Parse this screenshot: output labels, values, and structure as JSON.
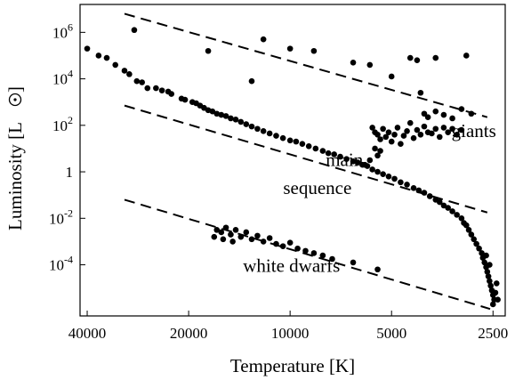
{
  "chart_data": {
    "type": "scatter",
    "title": "",
    "xlabel": "Temperature [K]",
    "ylabel_text": "Luminosity [L",
    "ylabel_close": "]",
    "x_scale": "log-reversed",
    "y_scale": "log",
    "xlim": [
      42000,
      2300
    ],
    "ylim_log10": [
      -6.2,
      7.2
    ],
    "grid": false,
    "legend": "none",
    "x_ticks": [
      {
        "value": 40000,
        "label": "40000"
      },
      {
        "value": 20000,
        "label": "20000"
      },
      {
        "value": 10000,
        "label": "10000"
      },
      {
        "value": 5000,
        "label": "5000"
      },
      {
        "value": 2500,
        "label": "2500"
      }
    ],
    "y_ticks": [
      {
        "log": 6,
        "base": "10",
        "exp": "6"
      },
      {
        "log": 4,
        "base": "10",
        "exp": "4"
      },
      {
        "log": 2,
        "base": "10",
        "exp": "2"
      },
      {
        "log": 0,
        "base": "1",
        "exp": ""
      },
      {
        "log": -2,
        "base": "10",
        "exp": "-2"
      },
      {
        "log": -4,
        "base": "10",
        "exp": "-4"
      }
    ],
    "annotations": [
      {
        "text": "giants",
        "x": 2850,
        "log_y": 1.5
      },
      {
        "text": "main",
        "x": 6900,
        "log_y": 0.25
      },
      {
        "text": "sequence",
        "x": 8300,
        "log_y": -0.95
      },
      {
        "text": "white dwarfs",
        "x": 9900,
        "log_y": -4.3
      }
    ],
    "reference_lines": [
      {
        "x": [
          31000,
          2600
        ],
        "log_y": [
          6.8,
          2.35
        ]
      },
      {
        "x": [
          31000,
          2600
        ],
        "log_y": [
          2.85,
          -1.75
        ]
      },
      {
        "x": [
          31000,
          2550
        ],
        "log_y": [
          -1.2,
          -5.9
        ]
      }
    ],
    "series": [
      {
        "role": "main-sequence",
        "points": [
          [
            40000,
            5.3
          ],
          [
            37000,
            5.0
          ],
          [
            35000,
            4.9
          ],
          [
            33000,
            4.6
          ],
          [
            31000,
            4.35
          ],
          [
            30000,
            4.2
          ],
          [
            28500,
            3.9
          ],
          [
            27500,
            3.85
          ],
          [
            26500,
            3.6
          ],
          [
            25000,
            3.6
          ],
          [
            24000,
            3.5
          ],
          [
            23000,
            3.45
          ],
          [
            22500,
            3.35
          ],
          [
            21000,
            3.15
          ],
          [
            20500,
            3.1
          ],
          [
            19500,
            3.0
          ],
          [
            19000,
            2.95
          ],
          [
            18500,
            2.85
          ],
          [
            18000,
            2.75
          ],
          [
            17500,
            2.65
          ],
          [
            17000,
            2.6
          ],
          [
            16500,
            2.5
          ],
          [
            16000,
            2.45
          ],
          [
            15500,
            2.4
          ],
          [
            15000,
            2.3
          ],
          [
            14500,
            2.25
          ],
          [
            14000,
            2.15
          ],
          [
            13500,
            2.05
          ],
          [
            13000,
            1.95
          ],
          [
            12500,
            1.85
          ],
          [
            12000,
            1.75
          ],
          [
            11500,
            1.65
          ],
          [
            11000,
            1.55
          ],
          [
            10500,
            1.45
          ],
          [
            10000,
            1.35
          ],
          [
            9600,
            1.3
          ],
          [
            9200,
            1.2
          ],
          [
            8800,
            1.1
          ],
          [
            8400,
            1.0
          ],
          [
            8000,
            0.9
          ],
          [
            7700,
            0.8
          ],
          [
            7400,
            0.75
          ],
          [
            7100,
            0.65
          ],
          [
            6800,
            0.55
          ],
          [
            6500,
            0.45
          ],
          [
            6300,
            0.4
          ],
          [
            6100,
            0.3
          ],
          [
            5900,
            0.25
          ],
          [
            5700,
            0.1
          ],
          [
            5500,
            0.0
          ],
          [
            5300,
            -0.1
          ],
          [
            5100,
            -0.2
          ],
          [
            4900,
            -0.3
          ],
          [
            4700,
            -0.45
          ],
          [
            4500,
            -0.55
          ],
          [
            4300,
            -0.7
          ],
          [
            4150,
            -0.8
          ],
          [
            4000,
            -0.9
          ],
          [
            3850,
            -1.05
          ],
          [
            3700,
            -1.2
          ],
          [
            3600,
            -1.3
          ],
          [
            3500,
            -1.45
          ],
          [
            3400,
            -1.55
          ],
          [
            3300,
            -1.7
          ],
          [
            3200,
            -1.85
          ],
          [
            3100,
            -2.0
          ],
          [
            3050,
            -2.2
          ],
          [
            3000,
            -2.3
          ],
          [
            2950,
            -2.5
          ],
          [
            2900,
            -2.7
          ],
          [
            2850,
            -2.9
          ],
          [
            2800,
            -3.1
          ],
          [
            2750,
            -3.3
          ],
          [
            2700,
            -3.5
          ],
          [
            2680,
            -3.7
          ],
          [
            2650,
            -3.9
          ],
          [
            2620,
            -4.1
          ],
          [
            2600,
            -4.3
          ],
          [
            2580,
            -4.5
          ],
          [
            2560,
            -4.7
          ],
          [
            2540,
            -4.9
          ],
          [
            2520,
            -5.1
          ],
          [
            2500,
            -5.3
          ],
          [
            2480,
            -5.5
          ],
          [
            2500,
            -5.7
          ],
          [
            2460,
            -5.2
          ],
          [
            2440,
            -4.8
          ],
          [
            2420,
            -5.5
          ],
          [
            2560,
            -4.0
          ],
          [
            2620,
            -3.6
          ]
        ]
      },
      {
        "role": "giants",
        "points": [
          [
            5700,
            1.9
          ],
          [
            5600,
            1.7
          ],
          [
            5500,
            1.6
          ],
          [
            5400,
            1.4
          ],
          [
            5300,
            1.85
          ],
          [
            5200,
            1.5
          ],
          [
            5100,
            1.7
          ],
          [
            5000,
            1.3
          ],
          [
            4900,
            1.6
          ],
          [
            4800,
            1.9
          ],
          [
            4700,
            1.2
          ],
          [
            4600,
            1.55
          ],
          [
            4500,
            1.75
          ],
          [
            4400,
            2.1
          ],
          [
            4300,
            1.45
          ],
          [
            4200,
            1.8
          ],
          [
            4100,
            1.6
          ],
          [
            4000,
            1.95
          ],
          [
            3900,
            1.7
          ],
          [
            3800,
            1.65
          ],
          [
            3700,
            1.85
          ],
          [
            3600,
            1.5
          ],
          [
            3500,
            1.9
          ],
          [
            3400,
            1.7
          ],
          [
            3300,
            1.85
          ],
          [
            3200,
            1.6
          ],
          [
            3100,
            1.8
          ],
          [
            5600,
            1.0
          ],
          [
            5500,
            0.7
          ],
          [
            5800,
            0.5
          ],
          [
            6000,
            0.3
          ],
          [
            5400,
            0.9
          ],
          [
            4000,
            2.5
          ],
          [
            3900,
            2.35
          ],
          [
            3700,
            2.6
          ],
          [
            3500,
            2.45
          ],
          [
            3300,
            2.3
          ],
          [
            3100,
            2.7
          ],
          [
            2900,
            2.5
          ]
        ]
      },
      {
        "role": "supergiants",
        "points": [
          [
            29000,
            6.1
          ],
          [
            12000,
            5.7
          ],
          [
            17500,
            5.2
          ],
          [
            10000,
            5.3
          ],
          [
            8500,
            5.2
          ],
          [
            6500,
            4.7
          ],
          [
            5800,
            4.6
          ],
          [
            4400,
            4.9
          ],
          [
            4200,
            4.8
          ],
          [
            3700,
            4.9
          ],
          [
            3000,
            5.0
          ],
          [
            5000,
            4.1
          ],
          [
            13000,
            3.9
          ],
          [
            4100,
            3.4
          ]
        ]
      },
      {
        "role": "white-dwarfs",
        "points": [
          [
            16500,
            -2.5
          ],
          [
            16000,
            -2.6
          ],
          [
            15500,
            -2.4
          ],
          [
            15000,
            -2.7
          ],
          [
            14500,
            -2.5
          ],
          [
            14000,
            -2.8
          ],
          [
            13500,
            -2.6
          ],
          [
            13000,
            -2.9
          ],
          [
            12500,
            -2.75
          ],
          [
            12000,
            -3.0
          ],
          [
            11500,
            -2.85
          ],
          [
            11000,
            -3.1
          ],
          [
            10500,
            -3.2
          ],
          [
            10000,
            -3.05
          ],
          [
            9500,
            -3.3
          ],
          [
            9000,
            -3.4
          ],
          [
            8500,
            -3.5
          ],
          [
            8000,
            -3.6
          ],
          [
            7500,
            -3.75
          ],
          [
            6500,
            -3.9
          ],
          [
            5500,
            -4.2
          ],
          [
            16800,
            -2.8
          ],
          [
            15800,
            -2.9
          ],
          [
            14800,
            -3.0
          ]
        ]
      }
    ]
  }
}
